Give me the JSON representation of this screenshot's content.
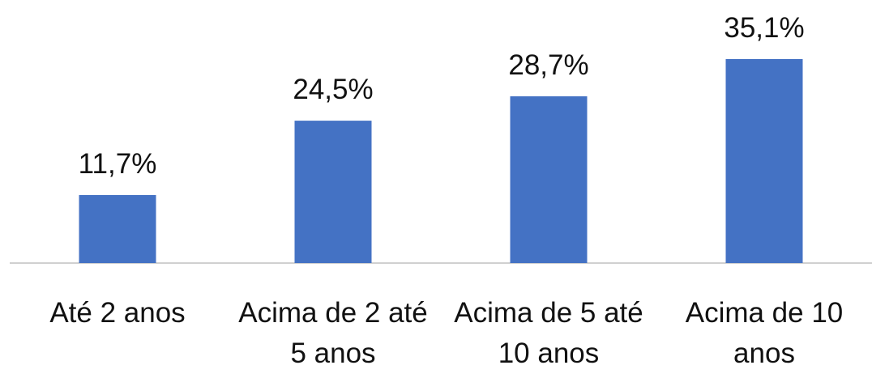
{
  "chart_data": {
    "type": "bar",
    "categories": [
      "Até 2 anos",
      "Acima de 2 até 5 anos",
      "Acima de 5 até 10 anos",
      "Acima de 10 anos"
    ],
    "values": [
      11.7,
      24.5,
      28.7,
      35.1
    ],
    "value_labels": [
      "11,7%",
      "24,5%",
      "28,7%",
      "35,1%"
    ],
    "color": "#4472c4"
  }
}
